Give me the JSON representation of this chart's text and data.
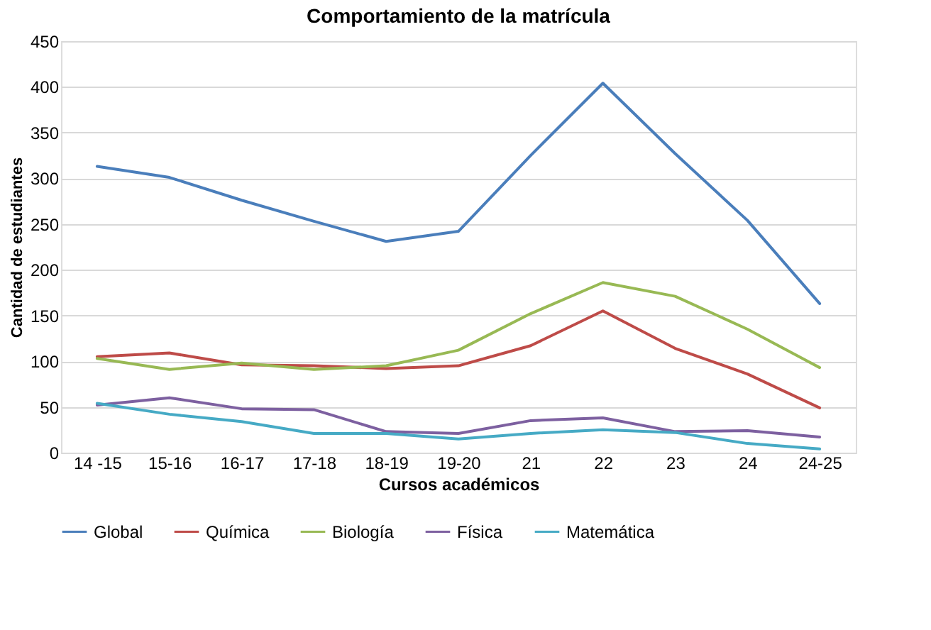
{
  "chart_data": {
    "type": "line",
    "title": "Comportamiento de la matrícula",
    "xlabel": "Cursos académicos",
    "ylabel": "Cantidad de estudiantes",
    "categories": [
      "14 -15",
      "15-16",
      "16-17",
      "17-18",
      "18-19",
      "19-20",
      "21",
      "22",
      "23",
      "24",
      "24-25"
    ],
    "series": [
      {
        "name": "Global",
        "color": "#4a7ebb",
        "values": [
          313,
          301,
          276,
          253,
          231,
          242,
          325,
          404,
          327,
          254,
          163
        ]
      },
      {
        "name": "Química",
        "color": "#be4b48",
        "values": [
          105,
          109,
          96,
          95,
          92,
          95,
          117,
          155,
          114,
          86,
          49
        ]
      },
      {
        "name": "Biología",
        "color": "#98b954",
        "values": [
          103,
          91,
          98,
          91,
          95,
          112,
          152,
          186,
          171,
          135,
          93
        ]
      },
      {
        "name": "Física",
        "color": "#7d60a0",
        "values": [
          52,
          60,
          48,
          47,
          23,
          21,
          35,
          38,
          23,
          24,
          17
        ]
      },
      {
        "name": "Matemática",
        "color": "#46aac5",
        "values": [
          54,
          42,
          34,
          21,
          21,
          15,
          21,
          25,
          22,
          10,
          4
        ]
      }
    ],
    "ylim": [
      0,
      450
    ],
    "yticks": [
      0,
      50,
      100,
      150,
      200,
      250,
      300,
      350,
      400,
      450
    ],
    "grid": "y",
    "legend": "bottom",
    "marker": "none",
    "line_style": "solid"
  }
}
